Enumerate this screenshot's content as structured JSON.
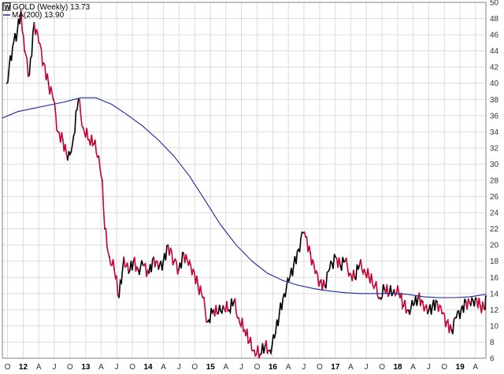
{
  "chart_data": {
    "type": "line",
    "title": "GOLD (Weekly) 13.73",
    "ma_label": "MA(200) 13.90",
    "ylim": [
      6,
      50
    ],
    "y_ticks": [
      "6",
      "8",
      "10",
      "12",
      "14",
      "16",
      "18",
      "20",
      "22",
      "24",
      "26",
      "28",
      "30",
      "32",
      "34",
      "36",
      "38",
      "40",
      "42",
      "44",
      "46",
      "48",
      "50"
    ],
    "x_ticks": [
      "O",
      "12",
      "A",
      "J",
      "O",
      "13",
      "A",
      "J",
      "O",
      "14",
      "A",
      "J",
      "O",
      "15",
      "A",
      "J",
      "O",
      "16",
      "A",
      "J",
      "O",
      "17",
      "A",
      "J",
      "O",
      "18",
      "A",
      "J",
      "O",
      "19",
      "A"
    ],
    "x_ticks_bold": [
      "12",
      "13",
      "14",
      "15",
      "16",
      "17",
      "18",
      "19"
    ],
    "x_range": [
      "2011-09",
      "2019-06"
    ],
    "grid": true,
    "colors": {
      "up": "#000000",
      "down": "#cc0033",
      "ma": "#1a2a9a",
      "grid": "#dcdcdc",
      "axis": "#808080"
    },
    "series": [
      {
        "name": "GOLD (Weekly)",
        "style": "price",
        "x": [
          "2011-09-26",
          "2011-10-31",
          "2011-11-28",
          "2011-12-19",
          "2012-01-09",
          "2012-02-06",
          "2012-03-05",
          "2012-04-02",
          "2012-04-30",
          "2012-05-28",
          "2012-06-25",
          "2012-07-23",
          "2012-08-20",
          "2012-09-17",
          "2012-10-08",
          "2012-10-22",
          "2012-11-19",
          "2012-12-17",
          "2013-01-21",
          "2013-02-18",
          "2013-03-18",
          "2013-04-08",
          "2013-04-22",
          "2013-05-20",
          "2013-06-17",
          "2013-07-15",
          "2013-08-12",
          "2013-09-09",
          "2013-10-07",
          "2013-11-04",
          "2013-12-02",
          "2014-01-06",
          "2014-02-03",
          "2014-03-03",
          "2014-03-31",
          "2014-04-28",
          "2014-06-02",
          "2014-06-30",
          "2014-07-28",
          "2014-08-25",
          "2014-09-22",
          "2014-10-20",
          "2014-11-17",
          "2014-12-15",
          "2015-01-19",
          "2015-02-16",
          "2015-03-16",
          "2015-04-20",
          "2015-05-18",
          "2015-06-15",
          "2015-07-20",
          "2015-08-17",
          "2015-09-14",
          "2015-10-19",
          "2015-11-16",
          "2015-12-14",
          "2016-01-11",
          "2016-02-08",
          "2016-03-07",
          "2016-04-04",
          "2016-05-02",
          "2016-05-30",
          "2016-06-27",
          "2016-07-11",
          "2016-08-08",
          "2016-09-05",
          "2016-10-03",
          "2016-10-31",
          "2016-11-28",
          "2017-01-02",
          "2017-01-30",
          "2017-02-27",
          "2017-03-27",
          "2017-04-24",
          "2017-05-22",
          "2017-06-19",
          "2017-07-17",
          "2017-08-21",
          "2017-09-18",
          "2017-10-16",
          "2017-11-13",
          "2017-12-11",
          "2018-01-08",
          "2018-02-05",
          "2018-03-05",
          "2018-04-02",
          "2018-04-30",
          "2018-05-28",
          "2018-06-25",
          "2018-07-23",
          "2018-08-20",
          "2018-09-17",
          "2018-10-15",
          "2018-11-12",
          "2018-12-10",
          "2019-01-07",
          "2019-02-04",
          "2019-03-04",
          "2019-04-01",
          "2019-04-29",
          "2019-05-27",
          "2019-06-03"
        ],
        "values": [
          40.0,
          44.5,
          46.5,
          49.0,
          44.0,
          41.0,
          47.5,
          45.0,
          42.5,
          40.0,
          38.0,
          34.0,
          33.0,
          30.5,
          31.5,
          33.5,
          38.0,
          34.5,
          33.0,
          32.5,
          31.0,
          28.0,
          22.0,
          18.5,
          17.0,
          13.5,
          18.5,
          16.5,
          18.0,
          17.0,
          17.5,
          16.5,
          18.5,
          17.0,
          18.0,
          20.0,
          18.0,
          17.0,
          19.0,
          17.5,
          17.0,
          15.0,
          13.5,
          10.5,
          12.0,
          11.5,
          12.5,
          12.0,
          13.0,
          11.0,
          9.5,
          8.0,
          7.0,
          6.5,
          7.5,
          7.0,
          8.5,
          11.5,
          14.0,
          15.5,
          17.5,
          19.5,
          21.5,
          21.0,
          19.0,
          16.5,
          15.5,
          15.0,
          17.0,
          18.5,
          17.5,
          18.0,
          16.5,
          16.0,
          17.5,
          17.0,
          16.0,
          15.0,
          13.5,
          14.5,
          14.0,
          14.5,
          14.0,
          12.5,
          12.0,
          12.5,
          13.5,
          13.0,
          11.5,
          12.5,
          13.0,
          11.5,
          10.5,
          9.5,
          11.0,
          12.0,
          13.0,
          12.5,
          13.5,
          12.5,
          12.0,
          13.7
        ]
      },
      {
        "name": "MA(200)",
        "style": "ma",
        "x": [
          "2011-09-01",
          "2011-12-01",
          "2012-03-01",
          "2012-06-01",
          "2012-09-01",
          "2012-12-01",
          "2013-03-01",
          "2013-06-01",
          "2013-09-01",
          "2013-12-01",
          "2014-03-01",
          "2014-06-01",
          "2014-09-01",
          "2014-12-01",
          "2015-03-01",
          "2015-06-01",
          "2015-09-01",
          "2015-12-01",
          "2016-03-01",
          "2016-06-01",
          "2016-09-01",
          "2016-12-01",
          "2017-03-01",
          "2017-06-01",
          "2017-09-01",
          "2017-12-01",
          "2018-03-01",
          "2018-06-01",
          "2018-09-01",
          "2018-12-01",
          "2019-03-01",
          "2019-06-01"
        ],
        "values": [
          35.7,
          36.5,
          36.9,
          37.3,
          37.7,
          38.2,
          38.2,
          37.4,
          36.1,
          34.7,
          33.0,
          31.0,
          28.5,
          25.5,
          22.5,
          20.0,
          18.0,
          16.5,
          15.6,
          15.0,
          14.6,
          14.3,
          14.1,
          14.0,
          14.0,
          14.0,
          13.9,
          13.6,
          13.5,
          13.5,
          13.6,
          13.9
        ]
      }
    ]
  }
}
